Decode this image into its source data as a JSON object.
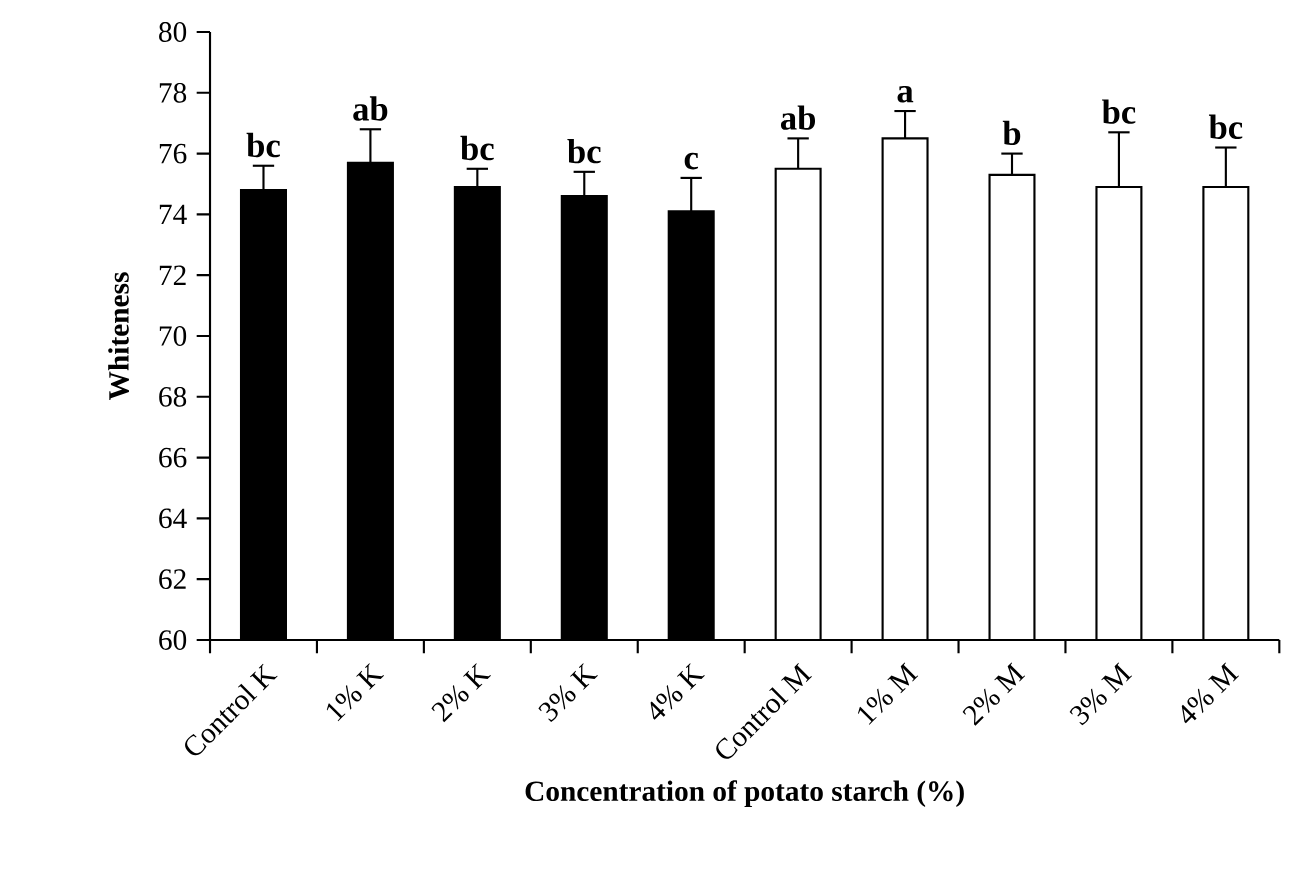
{
  "chart_data": {
    "type": "bar",
    "xlabel": "Concentration of potato starch (%)",
    "ylabel": "Whiteness",
    "categories": [
      "Control K",
      "1% K",
      "2% K",
      "3% K",
      "4% K",
      "Control M",
      "1% M",
      "2% M",
      "3% M",
      "4% M"
    ],
    "values": [
      74.8,
      75.7,
      74.9,
      74.6,
      74.1,
      75.5,
      76.5,
      75.3,
      74.9,
      74.9
    ],
    "colors": [
      "#000000",
      "#000000",
      "#000000",
      "#000000",
      "#000000",
      "#ffffff",
      "#ffffff",
      "#ffffff",
      "#ffffff",
      "#ffffff"
    ],
    "errors": [
      [
        74.8,
        75.6
      ],
      [
        75.7,
        76.8
      ],
      [
        74.9,
        75.5
      ],
      [
        74.6,
        75.4
      ],
      [
        74.1,
        75.2
      ],
      [
        75.5,
        76.5
      ],
      [
        76.5,
        77.4
      ],
      [
        75.3,
        76.0
      ],
      [
        74.9,
        76.7
      ],
      [
        74.9,
        76.2
      ]
    ],
    "ylim": [
      60,
      80
    ],
    "yticks": [
      60,
      62,
      64,
      66,
      68,
      70,
      72,
      74,
      76,
      78,
      80
    ],
    "annotations": [
      {
        "text": "bc",
        "x": "Control K",
        "y": 75.6
      },
      {
        "text": "ab",
        "x": "1% K",
        "y": 76.8
      },
      {
        "text": "bc",
        "x": "2% K",
        "y": 75.5
      },
      {
        "text": "bc",
        "x": "3% K",
        "y": 75.4
      },
      {
        "text": "c",
        "x": "4% K",
        "y": 75.2
      },
      {
        "text": "ab",
        "x": "Control M",
        "y": 76.5
      },
      {
        "text": "a",
        "x": "1% M",
        "y": 77.4
      },
      {
        "text": "b",
        "x": "2% M",
        "y": 76.0
      },
      {
        "text": "bc",
        "x": "3% M",
        "y": 76.7
      },
      {
        "text": "bc",
        "x": "4% M",
        "y": 76.2
      }
    ]
  }
}
